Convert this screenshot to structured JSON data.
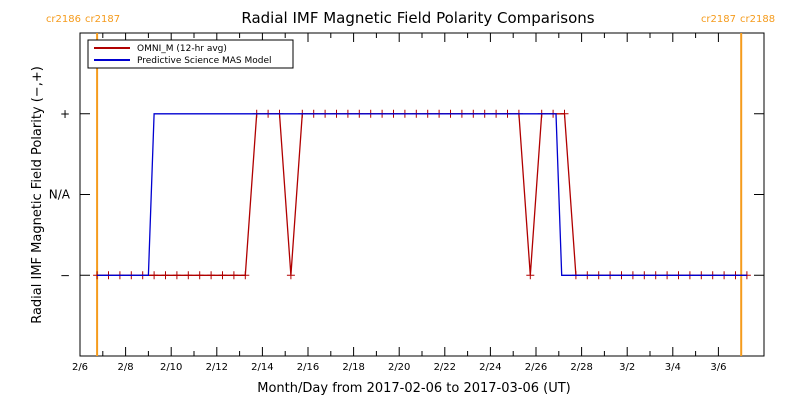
{
  "chart_data": {
    "type": "line",
    "title": "Radial IMF Magnetic Field Polarity Comparisons",
    "xlabel": "Month/Day from 2017-02-06 to 2017-03-06 (UT)",
    "ylabel": "Radial IMF Magnetic Field Polarity (−,+)",
    "x_tick_labels": [
      "2/6",
      "2/8",
      "2/10",
      "2/12",
      "2/14",
      "2/16",
      "2/18",
      "2/20",
      "2/22",
      "2/24",
      "2/26",
      "2/28",
      "3/2",
      "3/4",
      "3/6"
    ],
    "xlim": [
      "2017-02-06T00:00",
      "2017-03-08T00:00"
    ],
    "y_categories": [
      "−",
      "N/A",
      "+"
    ],
    "y_values": [
      -1,
      0,
      1
    ],
    "ylim": [
      -2,
      2
    ],
    "legend_position": "top-left",
    "series": [
      {
        "name": "OMNI_M (12-hr avg)",
        "color": "#b00000",
        "markers": true,
        "points": [
          [
            "2017-02-06T18:00",
            -1
          ],
          [
            "2017-02-07T06:00",
            -1
          ],
          [
            "2017-02-07T18:00",
            -1
          ],
          [
            "2017-02-08T06:00",
            -1
          ],
          [
            "2017-02-08T18:00",
            -1
          ],
          [
            "2017-02-09T06:00",
            -1
          ],
          [
            "2017-02-09T18:00",
            -1
          ],
          [
            "2017-02-10T06:00",
            -1
          ],
          [
            "2017-02-10T18:00",
            -1
          ],
          [
            "2017-02-11T06:00",
            -1
          ],
          [
            "2017-02-11T18:00",
            -1
          ],
          [
            "2017-02-12T06:00",
            -1
          ],
          [
            "2017-02-12T18:00",
            -1
          ],
          [
            "2017-02-13T06:00",
            -1
          ],
          [
            "2017-02-13T18:00",
            1
          ],
          [
            "2017-02-14T06:00",
            1
          ],
          [
            "2017-02-14T18:00",
            1
          ],
          [
            "2017-02-15T06:00",
            -1
          ],
          [
            "2017-02-15T18:00",
            1
          ],
          [
            "2017-02-16T06:00",
            1
          ],
          [
            "2017-02-16T18:00",
            1
          ],
          [
            "2017-02-17T06:00",
            1
          ],
          [
            "2017-02-17T18:00",
            1
          ],
          [
            "2017-02-18T06:00",
            1
          ],
          [
            "2017-02-18T18:00",
            1
          ],
          [
            "2017-02-19T06:00",
            1
          ],
          [
            "2017-02-19T18:00",
            1
          ],
          [
            "2017-02-20T06:00",
            1
          ],
          [
            "2017-02-20T18:00",
            1
          ],
          [
            "2017-02-21T06:00",
            1
          ],
          [
            "2017-02-21T18:00",
            1
          ],
          [
            "2017-02-22T06:00",
            1
          ],
          [
            "2017-02-22T18:00",
            1
          ],
          [
            "2017-02-23T06:00",
            1
          ],
          [
            "2017-02-23T18:00",
            1
          ],
          [
            "2017-02-24T06:00",
            1
          ],
          [
            "2017-02-24T18:00",
            1
          ],
          [
            "2017-02-25T06:00",
            1
          ],
          [
            "2017-02-25T18:00",
            -1
          ],
          [
            "2017-02-26T06:00",
            1
          ],
          [
            "2017-02-26T18:00",
            1
          ],
          [
            "2017-02-27T06:00",
            1
          ],
          [
            "2017-02-27T18:00",
            -1
          ],
          [
            "2017-02-28T06:00",
            -1
          ],
          [
            "2017-02-28T18:00",
            -1
          ],
          [
            "2017-03-01T06:00",
            -1
          ],
          [
            "2017-03-01T18:00",
            -1
          ],
          [
            "2017-03-02T06:00",
            -1
          ],
          [
            "2017-03-02T18:00",
            -1
          ],
          [
            "2017-03-03T06:00",
            -1
          ],
          [
            "2017-03-03T18:00",
            -1
          ],
          [
            "2017-03-04T06:00",
            -1
          ],
          [
            "2017-03-04T18:00",
            -1
          ],
          [
            "2017-03-05T06:00",
            -1
          ],
          [
            "2017-03-05T18:00",
            -1
          ],
          [
            "2017-03-06T06:00",
            -1
          ],
          [
            "2017-03-06T18:00",
            -1
          ],
          [
            "2017-03-07T06:00",
            -1
          ]
        ]
      },
      {
        "name": "Predictive Science MAS Model",
        "color": "#0000d0",
        "markers": false,
        "points": [
          [
            "2017-02-06T18:00",
            -1
          ],
          [
            "2017-02-09T00:00",
            -1
          ],
          [
            "2017-02-09T06:00",
            1
          ],
          [
            "2017-02-26T21:00",
            1
          ],
          [
            "2017-02-27T03:00",
            -1
          ],
          [
            "2017-03-07T06:00",
            -1
          ]
        ]
      }
    ],
    "carrington_markers": [
      {
        "date": "2017-02-06T18:00",
        "label_left": "cr2186",
        "label_right": "cr2187"
      },
      {
        "date": "2017-03-07T00:00",
        "label_left": "cr2187",
        "label_right": "cr2188"
      }
    ],
    "marker_color": "#f59b1c"
  }
}
